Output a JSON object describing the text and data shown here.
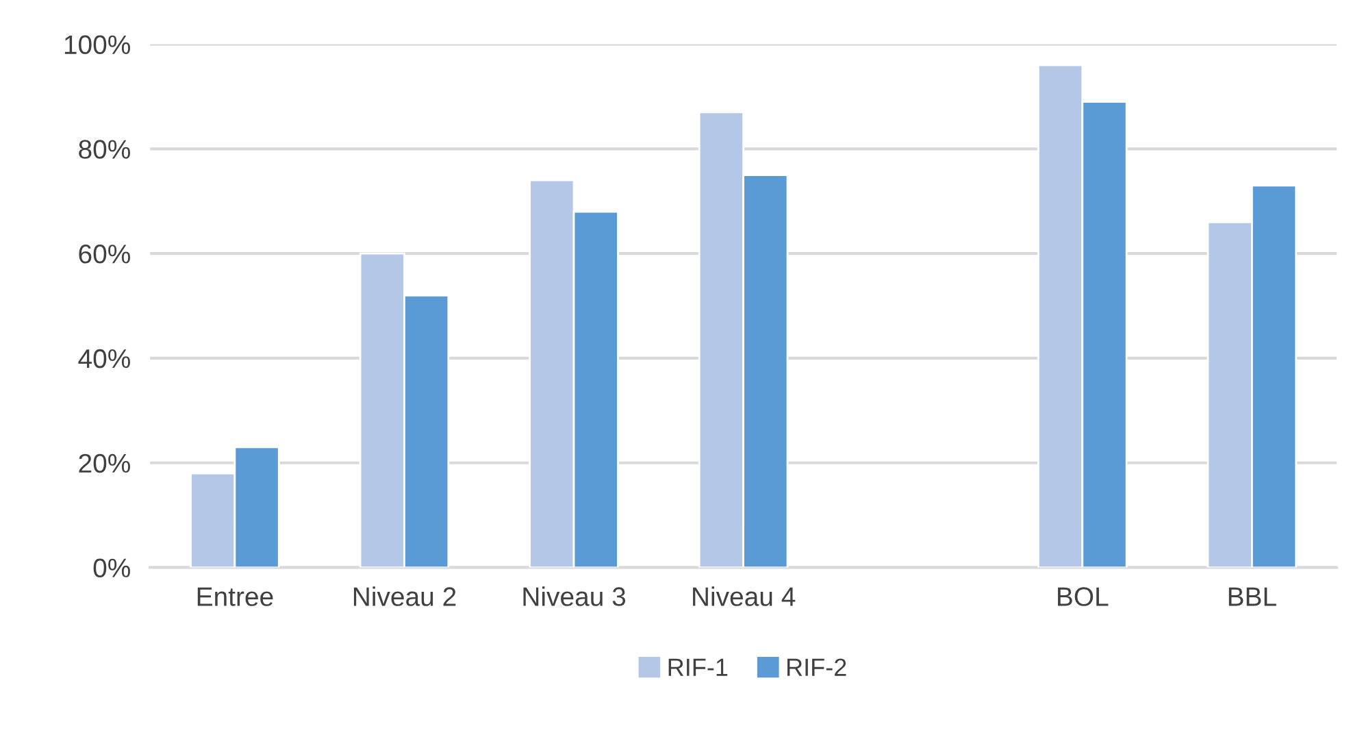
{
  "chart_data": {
    "type": "bar",
    "categories": [
      "Entree",
      "Niveau 2",
      "Niveau 3",
      "Niveau 4",
      null,
      "BOL",
      "BBL"
    ],
    "series": [
      {
        "name": "RIF-1",
        "color": "#b4c7e7",
        "values": [
          18,
          60,
          74,
          87,
          null,
          96,
          66
        ]
      },
      {
        "name": "RIF-2",
        "color": "#5b9bd5",
        "values": [
          23,
          52,
          68,
          75,
          null,
          89,
          73
        ]
      }
    ],
    "ylim": [
      0,
      100
    ],
    "yticks": [
      {
        "value": 0,
        "label": "0%"
      },
      {
        "value": 20,
        "label": "20%"
      },
      {
        "value": 40,
        "label": "40%"
      },
      {
        "value": 60,
        "label": "60%"
      },
      {
        "value": 80,
        "label": "80%"
      },
      {
        "value": 100,
        "label": "100%"
      }
    ],
    "grid": "y",
    "legend": "bottom"
  }
}
